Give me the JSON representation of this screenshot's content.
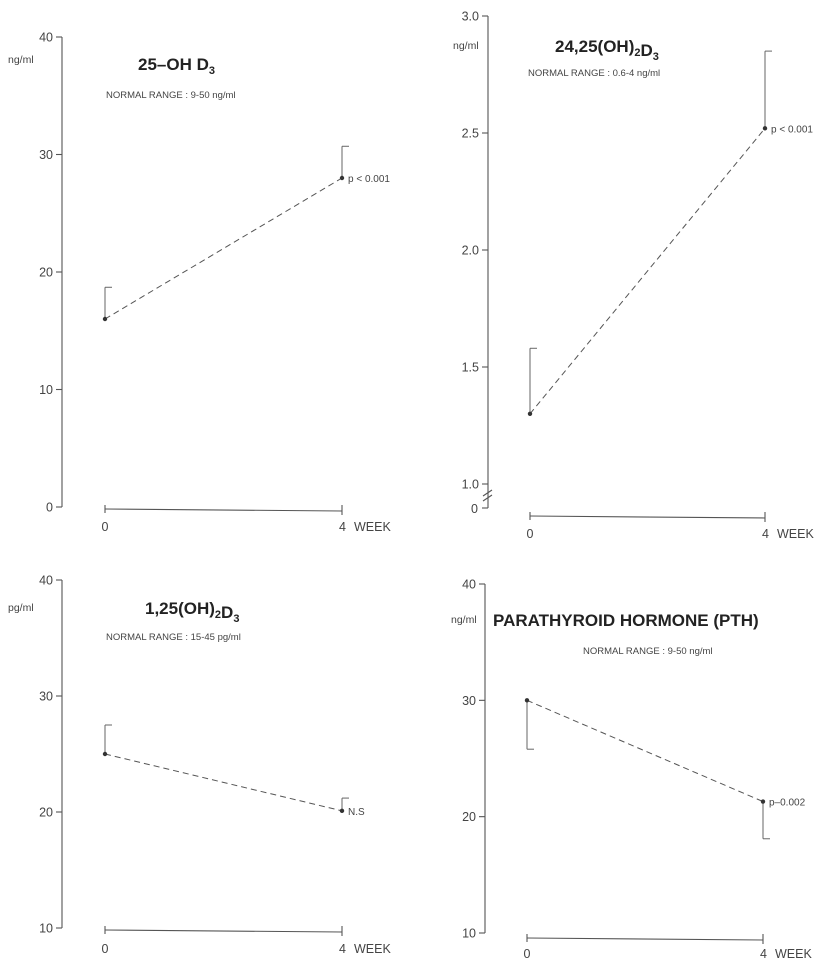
{
  "chart_data": [
    {
      "type": "line",
      "title": "25–OH D",
      "title_sub": "3",
      "subtitle": "NORMAL RANGE : 9-50 ng/ml",
      "ylabel": "ng/ml",
      "xlabel": "WEEK",
      "ylim": [
        0,
        40
      ],
      "yticks": [
        0,
        10,
        20,
        30,
        40
      ],
      "x": [
        "0",
        "4"
      ],
      "values": [
        16,
        28
      ],
      "error_upper": [
        18.7,
        30.7
      ],
      "annotations": [
        "",
        "p < 0.001"
      ],
      "axis_break": false
    },
    {
      "type": "line",
      "title": "24,25(OH)",
      "title_parts": [
        [
          "24,25(OH)",
          ""
        ],
        [
          "2",
          "sub"
        ],
        [
          "D",
          ""
        ],
        [
          "3",
          "sub"
        ]
      ],
      "subtitle": "NORMAL RANGE : 0.6-4 ng/ml",
      "ylabel": "ng/ml",
      "xlabel": "WEEK",
      "ylim": [
        1.0,
        3.0
      ],
      "yticks": [
        1.0,
        1.5,
        2.0,
        2.5,
        3.0
      ],
      "ytick_labels": [
        "1.0",
        "1.5",
        "2.0",
        "2.5",
        "3.0"
      ],
      "zero_label": "0",
      "x": [
        "0",
        "4"
      ],
      "values": [
        1.3,
        2.52
      ],
      "error_upper": [
        1.58,
        2.85
      ],
      "annotations": [
        "",
        "p < 0.001"
      ],
      "axis_break": true
    },
    {
      "type": "line",
      "title": "1,25(OH)",
      "title_parts": [
        [
          "1,25(OH)",
          ""
        ],
        [
          "2",
          "sub"
        ],
        [
          "D",
          ""
        ],
        [
          "3",
          "sub"
        ]
      ],
      "subtitle": "NORMAL RANGE : 15-45 pg/ml",
      "ylabel": "pg/ml",
      "xlabel": "WEEK",
      "ylim": [
        10,
        40
      ],
      "yticks": [
        10,
        20,
        30,
        40
      ],
      "x": [
        "0",
        "4"
      ],
      "values": [
        25,
        20.1
      ],
      "error_upper": [
        27.5,
        21.2
      ],
      "annotations": [
        "",
        "N.S"
      ],
      "axis_break": false
    },
    {
      "type": "line",
      "title": "PARATHYROID HORMONE (PTH)",
      "subtitle": "NORMAL RANGE : 9-50 ng/ml",
      "ylabel": "ng/ml",
      "xlabel": "WEEK",
      "ylim": [
        10,
        40
      ],
      "yticks": [
        10,
        20,
        30,
        40
      ],
      "x": [
        "0",
        "4"
      ],
      "values": [
        30,
        21.3
      ],
      "error_lower": [
        25.8,
        18.1
      ],
      "annotations": [
        "",
        "p–0.002"
      ],
      "axis_break": false
    }
  ]
}
